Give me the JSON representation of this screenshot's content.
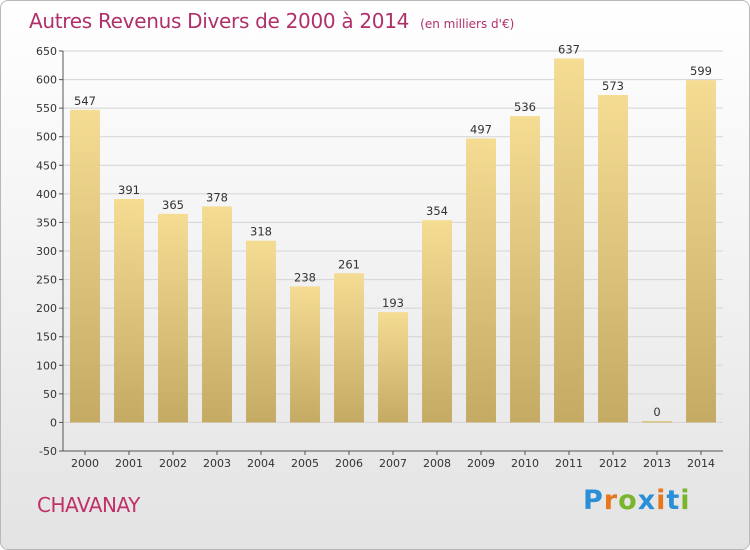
{
  "header": {
    "title": "Autres Revenus Divers de 2000 à 2014",
    "unit": "(en milliers d'€)"
  },
  "footer": {
    "town": "CHAVANAY",
    "logo": {
      "letters": [
        "P",
        "r",
        "o",
        "x",
        "i",
        "t",
        "i"
      ],
      "colors": [
        "#2a8fd6",
        "#e8761e",
        "#7ab52d",
        "#2a8fd6",
        "#e8761e",
        "#2a8fd6",
        "#7ab52d"
      ]
    }
  },
  "chart_data": {
    "type": "bar",
    "title": "Autres Revenus Divers de 2000 à 2014",
    "subtitle": "(en milliers d'€)",
    "categories": [
      "2000",
      "2001",
      "2002",
      "2003",
      "2004",
      "2005",
      "2006",
      "2007",
      "2008",
      "2009",
      "2010",
      "2011",
      "2012",
      "2013",
      "2014"
    ],
    "values": [
      547,
      391,
      365,
      378,
      318,
      238,
      261,
      193,
      354,
      497,
      536,
      637,
      573,
      0,
      599
    ],
    "ylim": [
      -50,
      650
    ],
    "yticks": [
      -50,
      0,
      50,
      100,
      150,
      200,
      250,
      300,
      350,
      400,
      450,
      500,
      550,
      600,
      650
    ],
    "grid": true,
    "bar_color_top": "#f5dc93",
    "bar_color_bottom": "#c4aa63",
    "grid_color": "#d4d4d4"
  }
}
